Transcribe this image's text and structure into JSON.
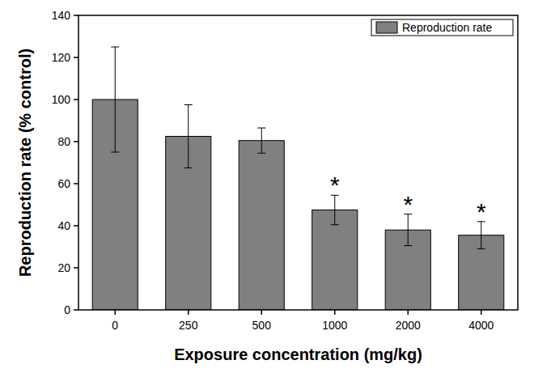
{
  "chart_data": {
    "type": "bar",
    "x_label": "Exposure concentration (mg/kg)",
    "y_label": "Reproduction rate (% control)",
    "categories": [
      "0",
      "250",
      "500",
      "1000",
      "2000",
      "4000"
    ],
    "series": [
      {
        "name": "Reproduction rate",
        "color": "#808080",
        "values": [
          100,
          82.5,
          80.5,
          47.5,
          38,
          35.5
        ],
        "errors": [
          25,
          15,
          6,
          7,
          7.5,
          6.5
        ]
      }
    ],
    "annotations": [
      {
        "category": "1000",
        "text": "*"
      },
      {
        "category": "2000",
        "text": "*"
      },
      {
        "category": "4000",
        "text": "*"
      }
    ],
    "ylim": [
      0,
      140
    ],
    "yticks": [
      0,
      20,
      40,
      60,
      80,
      100,
      120,
      140
    ],
    "legend": "top-right",
    "grid": false
  }
}
